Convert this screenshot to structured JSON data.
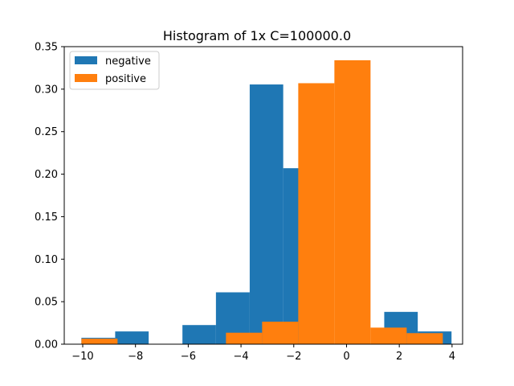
{
  "chart_data": {
    "type": "bar",
    "title": "Histogram of 1x C=100000.0",
    "xlabel": "",
    "ylabel": "",
    "xlim": [
      -10.7,
      4.4
    ],
    "ylim": [
      0,
      0.35
    ],
    "xticks": [
      -10,
      -8,
      -6,
      -4,
      -2,
      0,
      2,
      4
    ],
    "yticks": [
      0.0,
      0.05,
      0.1,
      0.15,
      0.2,
      0.25,
      0.3,
      0.35
    ],
    "xtick_labels": [
      "−10",
      "−8",
      "−6",
      "−4",
      "−2",
      "0",
      "2",
      "4"
    ],
    "ytick_labels": [
      "0.00",
      "0.05",
      "0.10",
      "0.15",
      "0.20",
      "0.25",
      "0.30",
      "0.35"
    ],
    "grid": false,
    "legend_position": "top-left",
    "series": [
      {
        "name": "negative",
        "color": "#1f77b4",
        "bin_edges": [
          -10.05,
          -8.77,
          -7.5,
          -6.22,
          -4.95,
          -3.67,
          -2.4,
          -1.12,
          0.15,
          1.43,
          2.7,
          3.98
        ],
        "values": [
          0.0075,
          0.015,
          0.0,
          0.0225,
          0.061,
          0.3055,
          0.207,
          0.0,
          0.0,
          0.038,
          0.015
        ]
      },
      {
        "name": "positive",
        "color": "#ff7f0e",
        "bin_edges": [
          -10.05,
          -8.68,
          -7.31,
          -5.94,
          -4.57,
          -3.2,
          -1.83,
          -0.46,
          0.91,
          2.28,
          3.65
        ],
        "values": [
          0.0065,
          0.0,
          0.0,
          0.0,
          0.0135,
          0.0265,
          0.307,
          0.334,
          0.0195,
          0.013
        ]
      }
    ]
  }
}
